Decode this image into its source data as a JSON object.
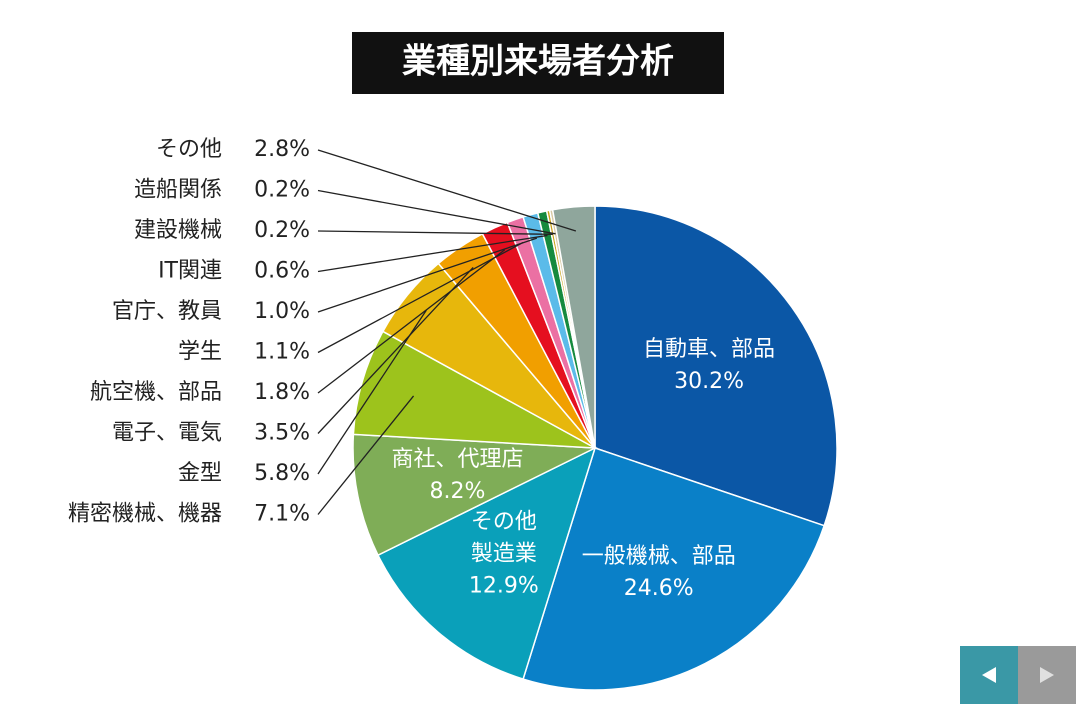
{
  "chart_data": {
    "type": "pie",
    "title": "業種別来場者分析",
    "categories": [
      "自動車、部品",
      "一般機械、部品",
      "その他\n製造業",
      "商社、代理店",
      "精密機械、機器",
      "金型",
      "電子、電気",
      "航空機、部品",
      "学生",
      "官庁、教員",
      "IT関連",
      "建設機械",
      "造船関係",
      "その他"
    ],
    "values": [
      30.2,
      24.6,
      12.9,
      8.2,
      7.1,
      5.8,
      3.5,
      1.8,
      1.1,
      1.0,
      0.6,
      0.2,
      0.2,
      2.8
    ],
    "value_labels": [
      "30.2%",
      "24.6%",
      "12.9%",
      "8.2%",
      "7.1%",
      "5.8%",
      "3.5%",
      "1.8%",
      "1.1%",
      "1.0%",
      "0.6%",
      "0.2%",
      "0.2%",
      "2.8%"
    ],
    "colors": [
      "#0b57a6",
      "#0a80c8",
      "#0aa0ba",
      "#7fad57",
      "#9dc31c",
      "#e7b70c",
      "#f19f00",
      "#e50f1f",
      "#eb70a3",
      "#5bbbe9",
      "#168a3e",
      "#c9a31a",
      "#d8c8a2",
      "#8fa69c"
    ]
  }
}
